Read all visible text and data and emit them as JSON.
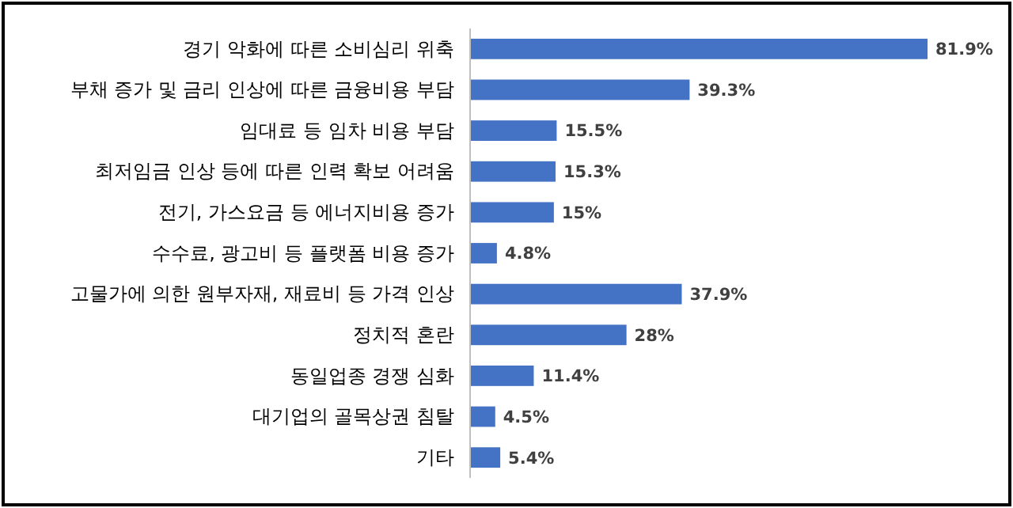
{
  "chart_data": {
    "type": "bar",
    "orientation": "horizontal",
    "categories": [
      "경기 악화에 따른 소비심리 위축",
      "부채 증가 및 금리 인상에 따른 금융비용 부담",
      "임대료 등 임차 비용 부담",
      "최저임금 인상 등에 따른 인력 확보 어려움",
      "전기, 가스요금 등 에너지비용 증가",
      "수수료, 광고비 등 플랫폼 비용 증가",
      "고물가에 의한 원부자재, 재료비 등 가격 인상",
      "정치적 혼란",
      "동일업종 경쟁 심화",
      "대기업의 골목상권 침탈",
      "기타"
    ],
    "values": [
      81.9,
      39.3,
      15.5,
      15.3,
      15,
      4.8,
      37.9,
      28,
      11.4,
      4.5,
      5.4
    ],
    "value_labels": [
      "81.9%",
      "39.3%",
      "15.5%",
      "15.3%",
      "15%",
      "4.8%",
      "37.9%",
      "28%",
      "11.4%",
      "4.5%",
      "5.4%"
    ],
    "color": "#4472c4"
  }
}
